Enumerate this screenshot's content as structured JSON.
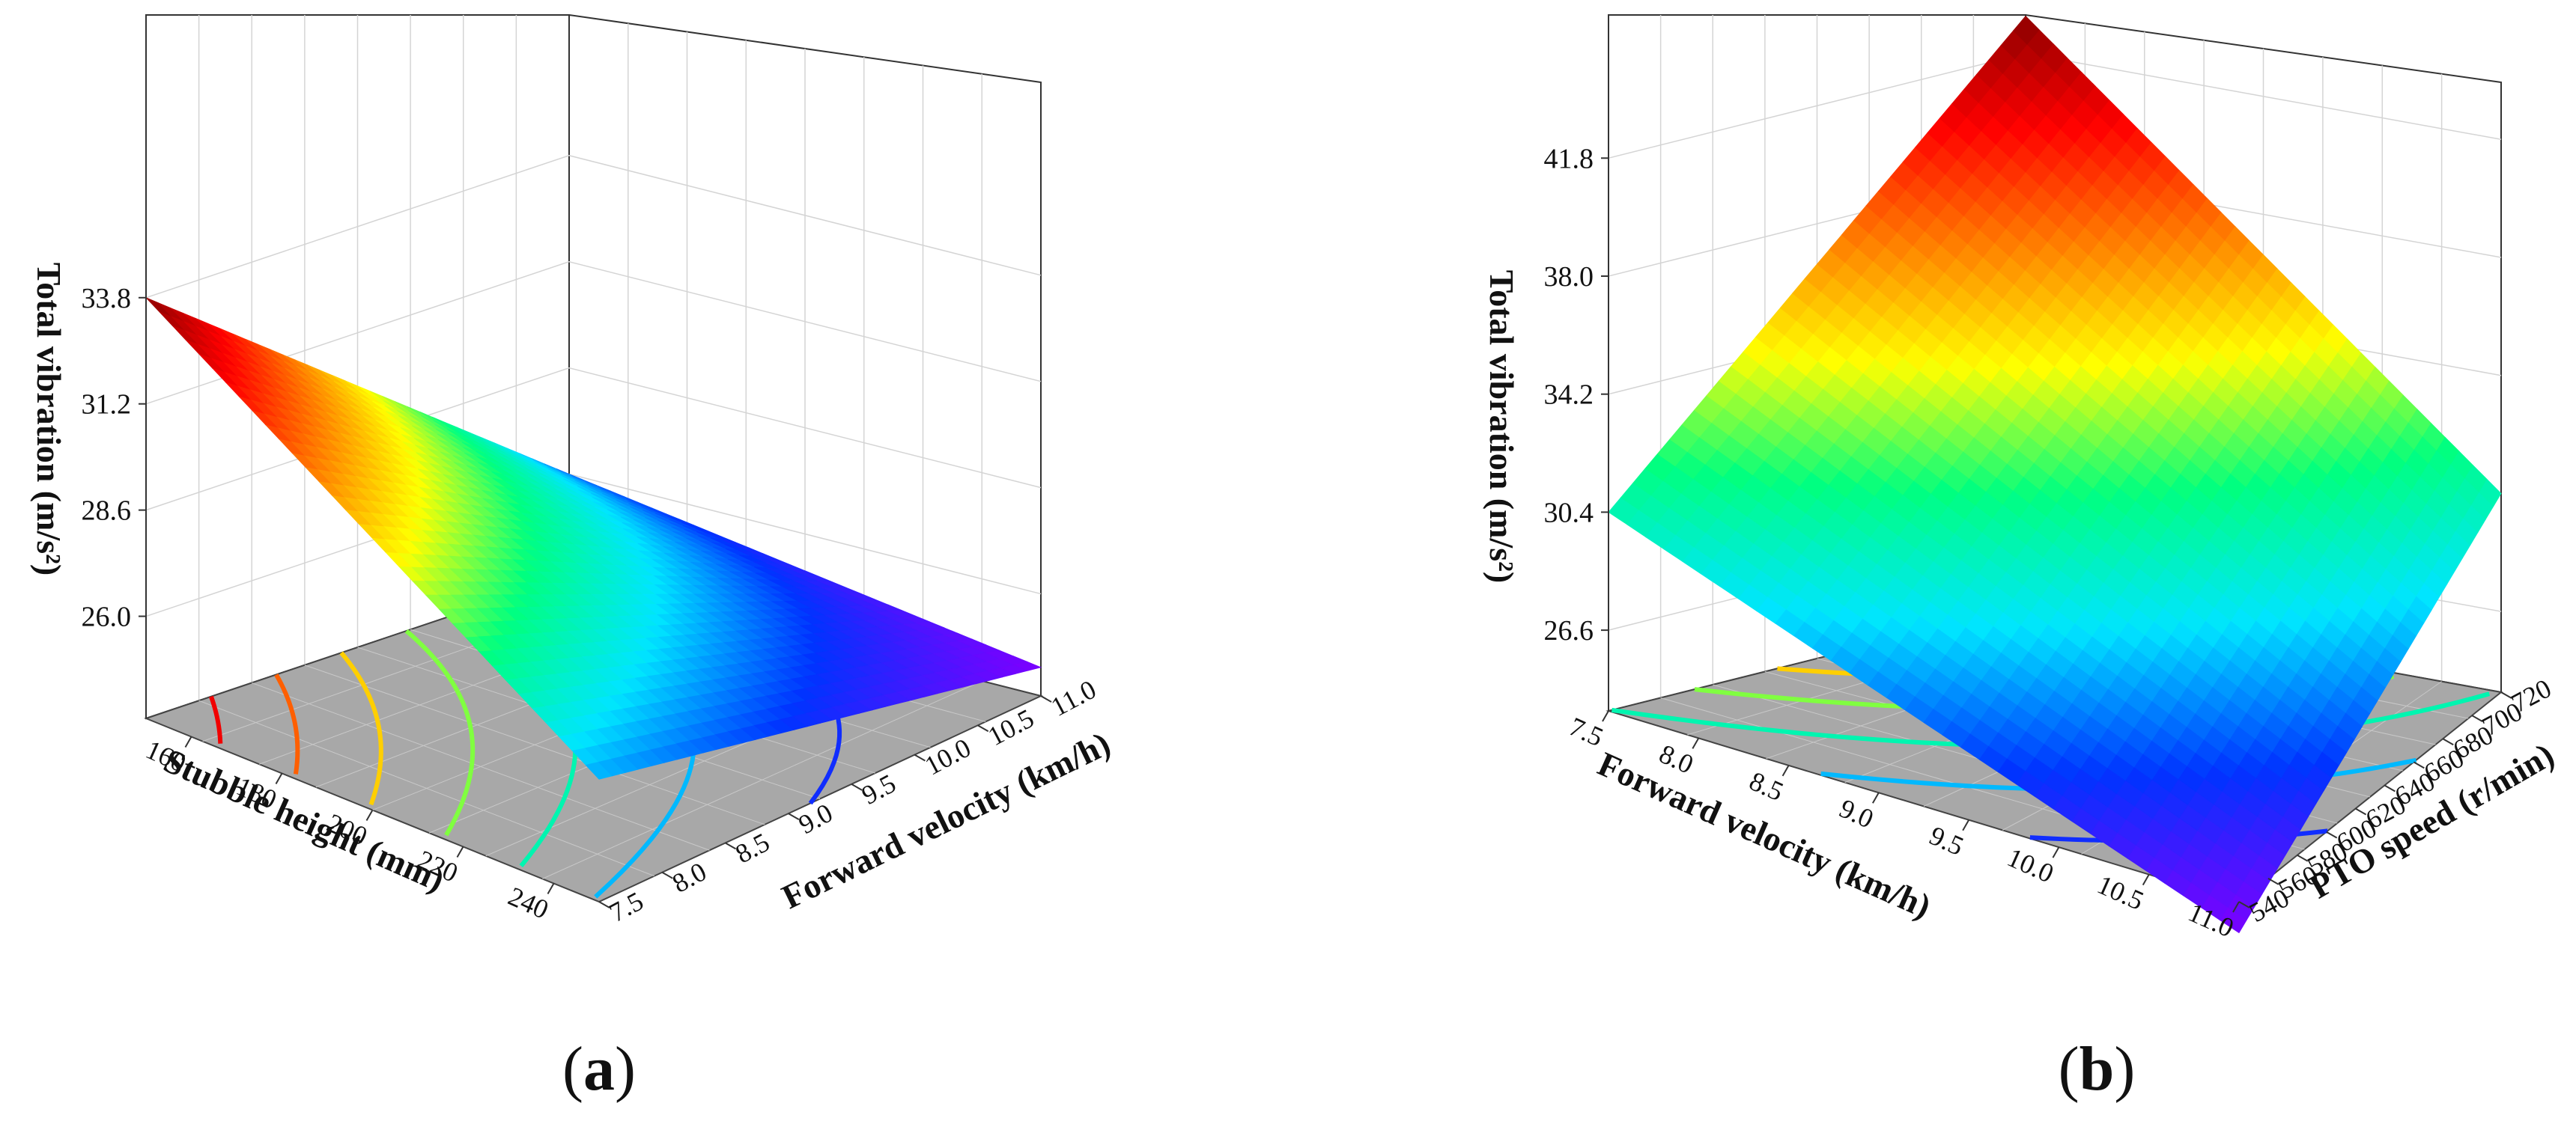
{
  "chart_data": [
    {
      "type": "surface3d",
      "panel_label": "a",
      "zlabel": "Total vibration (m/s²)",
      "xlabel": "Stubble height (mm)",
      "ylabel": "Forward velocity (km/h)",
      "x_ticks": [
        "160",
        "180",
        "200",
        "220",
        "240"
      ],
      "y_ticks": [
        "7.5",
        "8.0",
        "8.5",
        "9.0",
        "9.5",
        "10.0",
        "10.5",
        "11.0"
      ],
      "z_ticks": [
        "26.0",
        "28.6",
        "31.2",
        "33.8"
      ],
      "xlim": [
        150,
        250
      ],
      "ylim": [
        7.5,
        11.0
      ],
      "zlim": [
        23.5,
        35.5
      ],
      "corners": {
        "x_min_y_min": 33.8,
        "x_max_y_min": 26.5,
        "x_min_y_max": 26.0,
        "x_max_y_max": 24.2
      },
      "colormap": [
        "#7d00ff",
        "#0033ff",
        "#00e5ff",
        "#00ff80",
        "#ffff00",
        "#ff7f00",
        "#ff0000",
        "#8b0000"
      ]
    },
    {
      "type": "surface3d",
      "panel_label": "b",
      "zlabel": "Total vibration (m/s²)",
      "xlabel": "Forward velocity (km/h)",
      "ylabel": "PTO speed (r/min)",
      "x_ticks": [
        "7.5",
        "8.0",
        "8.5",
        "9.0",
        "9.5",
        "10.0",
        "10.5",
        "11.0"
      ],
      "y_ticks": [
        "540",
        "560",
        "580",
        "600",
        "620",
        "640",
        "660",
        "680",
        "700",
        "720"
      ],
      "z_ticks": [
        "26.6",
        "30.4",
        "34.2",
        "38.0",
        "41.8"
      ],
      "xlim": [
        7.5,
        11.0
      ],
      "ylim": [
        540,
        720
      ],
      "zlim": [
        24.0,
        44.0
      ],
      "corners": {
        "x_min_y_min": 30.4,
        "x_max_y_min": 23.0,
        "x_min_y_max": 43.0,
        "x_max_y_max": 30.4
      },
      "colormap": [
        "#7d00ff",
        "#0033ff",
        "#00e5ff",
        "#00ff80",
        "#ffff00",
        "#ff7f00",
        "#ff0000",
        "#8b0000"
      ]
    }
  ]
}
